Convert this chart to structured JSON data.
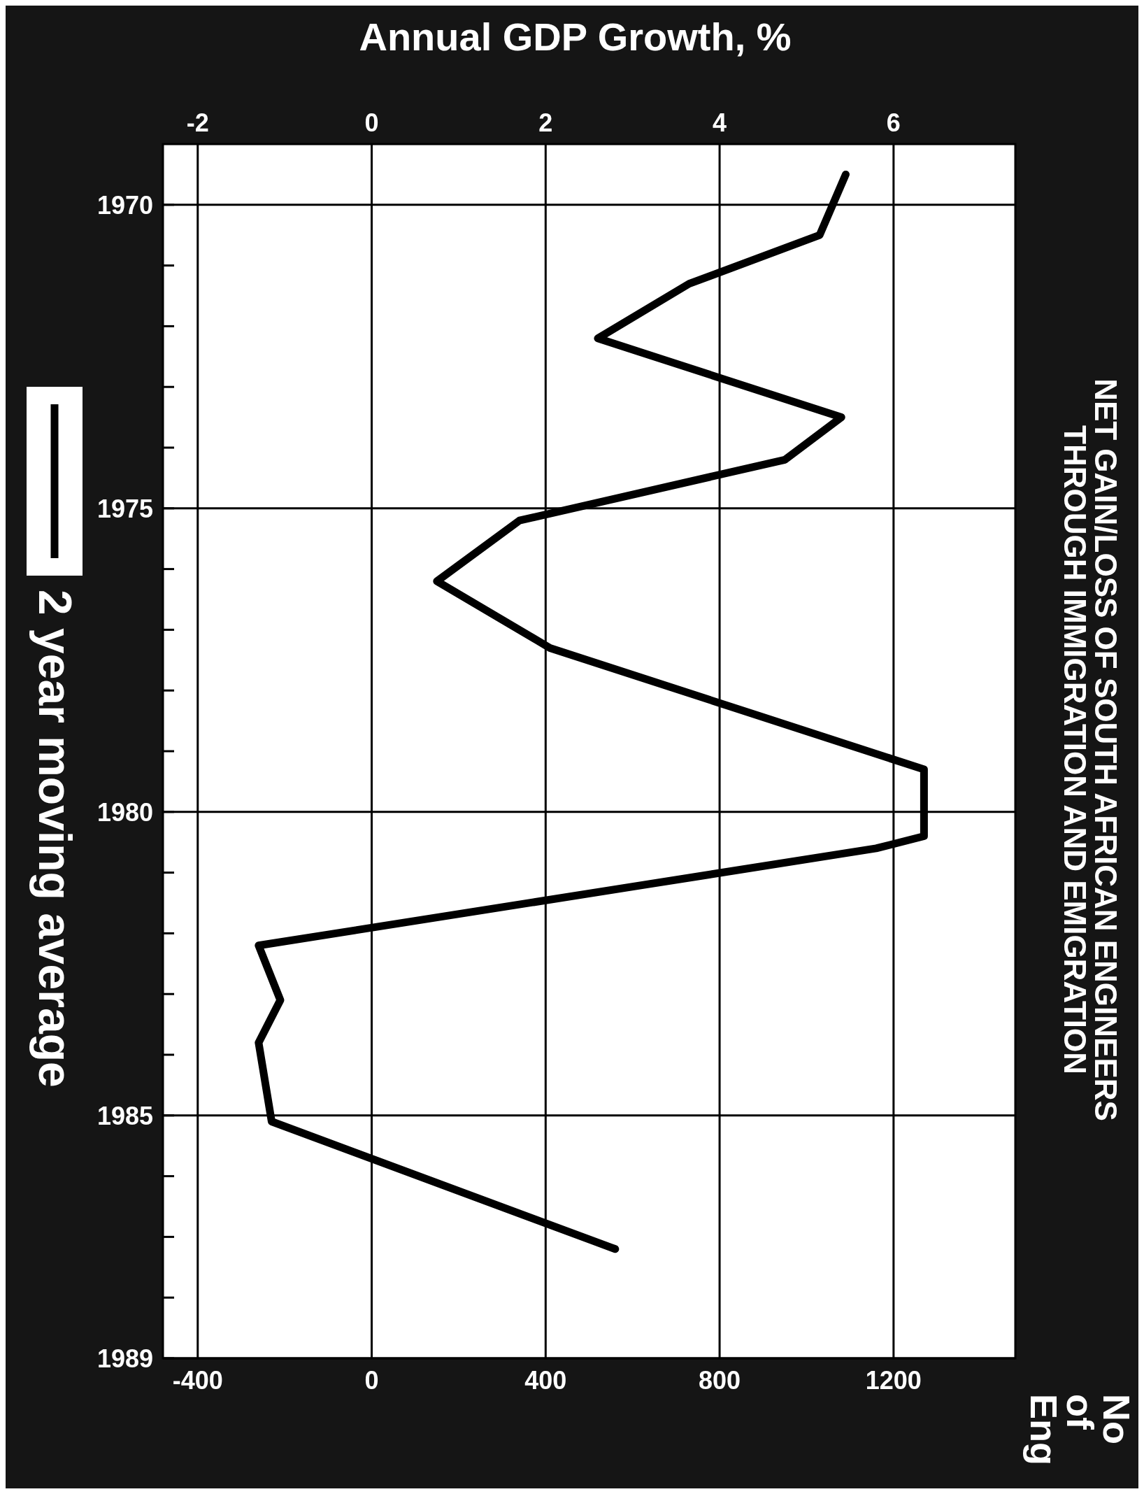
{
  "chart_data": {
    "type": "line",
    "title": "NET GAIN/LOSS OF SOUTH AFRICAN ENGINEERS\nTHROUGH IMMIGRATION AND EMIGRATION",
    "x2label": "Annual GDP Growth, %",
    "annotations": [
      "No of Eng"
    ],
    "ylim": [
      1989,
      1969
    ],
    "yticks": [
      1970,
      {
        "value": 1971,
        "label": null
      },
      {
        "value": 1972,
        "label": null
      },
      {
        "value": 1973,
        "label": null
      },
      {
        "value": 1974,
        "label": null
      },
      1975,
      {
        "value": 1976,
        "label": null
      },
      {
        "value": 1977,
        "label": null
      },
      {
        "value": 1978,
        "label": null
      },
      {
        "value": 1979,
        "label": null
      },
      1980,
      {
        "value": 1981,
        "label": null
      },
      {
        "value": 1982,
        "label": null
      },
      {
        "value": 1983,
        "label": null
      },
      {
        "value": 1984,
        "label": null
      },
      1985,
      {
        "value": 1986,
        "label": null
      },
      {
        "value": 1987,
        "label": null
      },
      {
        "value": 1988,
        "label": null
      },
      1989
    ],
    "x2lim": [
      -2.4,
      7.4
    ],
    "x2ticks": [
      -2,
      0,
      2,
      4,
      6
    ],
    "xlim": [
      -480,
      1480
    ],
    "xticks": [
      -400,
      0,
      400,
      800,
      1200
    ],
    "grid": true,
    "legend": "left",
    "line_style": "solid",
    "series": [
      {
        "name": "2 year moving average",
        "color": "#000000",
        "values": [
          1969.5,
          1970.5,
          1971.3,
          1972.2,
          1973.5,
          1974.2,
          1975.2,
          1976.2,
          1977.3,
          1979.3,
          1980.4,
          1980.6,
          1982.2,
          1983.1,
          1983.8,
          1985.1,
          1987.2
        ],
        "x": [
          1090,
          1030,
          730,
          520,
          1080,
          950,
          340,
          150,
          410,
          1270,
          1270,
          1160,
          -260,
          -210,
          -260,
          -230,
          560
        ]
      }
    ]
  }
}
